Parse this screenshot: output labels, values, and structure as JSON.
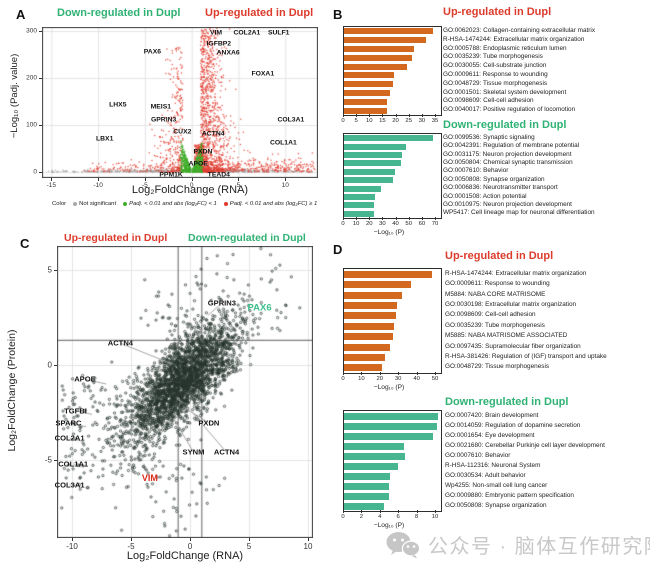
{
  "panel_a": {
    "letter": "A",
    "title_left": "Down-regulated in Dupl",
    "title_right": "Up-regulated  in Dupl",
    "xlabel": "Log₂FoldChange (RNA)",
    "ylabel": "−Log₁₀ (Padj. value)",
    "legend": {
      "label": "Color",
      "items": [
        {
          "text": "Not significant",
          "color": "#a8a8a8"
        },
        {
          "text": "Padj. < 0.01 and abs (log₂FC) < 1",
          "color": "#3fae2a"
        },
        {
          "text": "Padj. < 0.01 and abs (log₂FC) ≥ 1",
          "color": "#e23b2e"
        }
      ]
    }
  },
  "panel_b": {
    "letter": "B",
    "title_up": "Up-regulated  in Dupl",
    "title_down": "Down-regulated in Dupl"
  },
  "panel_c": {
    "letter": "C",
    "title_left": "Up-regulated  in Dupl",
    "title_right": "Down-regulated in Dupl",
    "xlabel": "Log₂FoldChange (RNA)",
    "ylabel": "Log₂FoldChange (Protein)"
  },
  "panel_d": {
    "letter": "D",
    "title_up": "Up-regulated  in Dupl",
    "title_down": "Down-regulated in Dupl"
  },
  "watermark": {
    "icon": "wechat-icon",
    "text": "公众号 · 脑体互作研究院"
  },
  "colors": {
    "red_text": "#dd3b2b",
    "green_text": "#2fb274",
    "orange_bar": "#d2691e",
    "green_bar": "#48b591",
    "gray_dot": "#a8a8a8",
    "green_dot": "#3fae2a",
    "red_dot": "#e23b2e",
    "scatter_dot": "#26342c",
    "grid": "#e4e4e4",
    "axis": "#3a3a3a",
    "refline": "#7d7d7d",
    "watermark": "#c8c8c8"
  },
  "chart_data": [
    {
      "id": "volcano_a",
      "type": "scatter",
      "subtype": "volcano",
      "title": "Volcano plot RNA: Dupl",
      "xlabel": "Log₂FoldChange (RNA)",
      "ylabel": "−Log₁₀ (Padj. value)",
      "x_ticks": [
        -15,
        -10,
        -5,
        0,
        5,
        10
      ],
      "y_ticks": [
        0,
        100,
        200,
        300
      ],
      "xlim": [
        -16,
        13.5
      ],
      "ylim": [
        -13,
        308
      ],
      "grid": true,
      "legend_position": "bottom",
      "cloud": {
        "seed": 11,
        "gray_n": 850,
        "green_n": 560,
        "red_pos_n": 1350,
        "red_neg_n": 430,
        "red_tail_n": 330
      },
      "gene_labels": [
        {
          "text": "VIM",
          "x": 2.6,
          "y": 296
        },
        {
          "text": "COL2A1",
          "x": 5.9,
          "y": 296
        },
        {
          "text": "SULF1",
          "x": 9.3,
          "y": 296
        },
        {
          "text": "IGFBP2",
          "x": 2.9,
          "y": 273
        },
        {
          "text": "ANXA6",
          "x": 3.9,
          "y": 253
        },
        {
          "text": "PAX6",
          "x": -4.2,
          "y": 255
        },
        {
          "text": "FOXA1",
          "x": 7.6,
          "y": 208
        },
        {
          "text": "LHX5",
          "x": -7.9,
          "y": 143
        },
        {
          "text": "MEIS1",
          "x": -3.3,
          "y": 139
        },
        {
          "text": "GPRIN3",
          "x": -3.0,
          "y": 110
        },
        {
          "text": "CUX2",
          "x": -1.0,
          "y": 86
        },
        {
          "text": "ACTN4",
          "x": 2.3,
          "y": 80
        },
        {
          "text": "COL3A1",
          "x": 10.6,
          "y": 110
        },
        {
          "text": "LBX1",
          "x": -9.3,
          "y": 70
        },
        {
          "text": "COL1A1",
          "x": 9.8,
          "y": 62
        },
        {
          "text": "PXDN",
          "x": 1.2,
          "y": 43
        },
        {
          "text": "APOE",
          "x": 0.7,
          "y": 18
        },
        {
          "text": "PPM1K",
          "x": -2.2,
          "y": -6
        },
        {
          "text": "TEAD4",
          "x": 2.9,
          "y": -6
        }
      ]
    },
    {
      "id": "go_up_b",
      "type": "bar",
      "orientation": "horizontal",
      "title": "Up-regulated  in Dupl",
      "bar_color": "#d2691e",
      "ticks": [
        0,
        5,
        10,
        15,
        20,
        25,
        30,
        35
      ],
      "xmax_tick": 35,
      "xlabel": "",
      "items": [
        {
          "term": "GO:0062023: Collagen-containing extracellular matrix",
          "value": 34
        },
        {
          "term": "R-HSA-1474244: Extracellular matrix organization",
          "value": 31
        },
        {
          "term": "GO:0005788: Endoplasmic reticulum lumen",
          "value": 26.5
        },
        {
          "term": "GO:0035239: Tube morphogenesis",
          "value": 26
        },
        {
          "term": "GO:0030055: Cell-substrate junction",
          "value": 24
        },
        {
          "term": "GO:0009611: Response to wounding",
          "value": 19
        },
        {
          "term": "GO:0048729: Tissue morphogenesis",
          "value": 18.8
        },
        {
          "term": "GO:0001501: Skeletal system development",
          "value": 17.6
        },
        {
          "term": "GO:0098609: Cell-cell adhesion",
          "value": 16.5
        },
        {
          "term": "GO:0040017: Positive regulation of locomotion",
          "value": 16.5
        }
      ]
    },
    {
      "id": "go_down_b",
      "type": "bar",
      "orientation": "horizontal",
      "title": "Down-regulated in Dupl",
      "bar_color": "#48b591",
      "ticks": [
        0,
        10,
        20,
        30,
        40,
        50,
        60,
        70
      ],
      "xmax_tick": 70,
      "xlabel": "−Log₁₀ (P)",
      "items": [
        {
          "term": "GO:0099536: Synaptic signaling",
          "value": 68
        },
        {
          "term": "GO:0042391: Regulation of membrane potential",
          "value": 47
        },
        {
          "term": "GO:0031175: Neuron projection development",
          "value": 44
        },
        {
          "term": "GO:0050804: Chemical synaptic transmission",
          "value": 43
        },
        {
          "term": "GO:0007610: Behavior",
          "value": 39
        },
        {
          "term": "GO:0050808: Synapse organization",
          "value": 37
        },
        {
          "term": "GO:0006836: Neurotransmitter transport",
          "value": 28
        },
        {
          "term": "GO:0001508: Action potential",
          "value": 23.5
        },
        {
          "term": "GO:0010975: Neuron projection development",
          "value": 23
        },
        {
          "term": "WP5417: Cell lineage map for neuronal differentiation",
          "value": 23
        }
      ]
    },
    {
      "id": "scatter_c",
      "type": "scatter",
      "subtype": "rna-protein-correlation",
      "title": "RNA vs Protein fold change",
      "xlabel": "Log₂FoldChange (RNA)",
      "ylabel": "Log₂FoldChange (Protein)",
      "x_ticks": [
        -10,
        -5,
        0,
        5,
        10
      ],
      "y_ticks": [
        -5,
        0,
        5
      ],
      "xlim": [
        -11.3,
        10.4
      ],
      "ylim": [
        -9.1,
        6.3
      ],
      "grid": true,
      "ref_lines": {
        "vertical": [
          -1,
          1
        ],
        "horizontal": [
          1.3
        ]
      },
      "cloud": {
        "seed": 7,
        "main_n": 2400,
        "wing_n": 260,
        "tr_n": 50,
        "bottom_n": 40,
        "topmid_n": 30
      },
      "gene_labels": [
        {
          "text": "GPRIN3",
          "x": 2.7,
          "y": 3.25,
          "cls": "c-black",
          "leader": [
            1.5,
            2.6
          ]
        },
        {
          "text": "PAX6",
          "x": 5.9,
          "y": 3.0,
          "cls": "c-green"
        },
        {
          "text": "ACTN4",
          "x": -5.9,
          "y": 1.15,
          "cls": "c-black",
          "leader": [
            -1.5,
            0.05
          ]
        },
        {
          "text": "APOE",
          "x": -8.9,
          "y": -0.75,
          "cls": "c-black",
          "leader": [
            -7.1,
            -1.0
          ]
        },
        {
          "text": "TGFBI",
          "x": -9.7,
          "y": -2.4,
          "cls": "c-black",
          "leader": [
            -8.3,
            -2.6
          ]
        },
        {
          "text": "SPARC",
          "x": -10.3,
          "y": -3.05,
          "cls": "c-black",
          "leader": [
            -8.8,
            -3.25
          ]
        },
        {
          "text": "COL2A1",
          "x": -10.2,
          "y": -3.85,
          "cls": "c-black",
          "leader": [
            -9.2,
            -4.0
          ]
        },
        {
          "text": "COL1A1",
          "x": -9.9,
          "y": -5.2,
          "cls": "c-black",
          "leader": [
            -9.0,
            -5.35
          ]
        },
        {
          "text": "COL3A1",
          "x": -10.2,
          "y": -6.3,
          "cls": "c-black",
          "leader": [
            -9.4,
            -6.35
          ]
        },
        {
          "text": "VIM",
          "x": -3.4,
          "y": -5.95,
          "cls": "c-red",
          "leader": [
            -3.9,
            -5.2
          ]
        },
        {
          "text": "SYNM",
          "x": 0.3,
          "y": -4.6,
          "cls": "c-black",
          "leader": [
            -1.4,
            -2.8
          ]
        },
        {
          "text": "PXDN",
          "x": 1.6,
          "y": -3.05,
          "cls": "c-black",
          "leader": [
            -0.6,
            -2.2
          ]
        },
        {
          "text": "ACTN4",
          "x": 3.1,
          "y": -4.6,
          "cls": "c-black",
          "leader": [
            0.2,
            -2.5
          ]
        }
      ]
    },
    {
      "id": "go_up_d",
      "type": "bar",
      "orientation": "horizontal",
      "title": "Up-regulated  in Dupl",
      "bar_color": "#d2691e",
      "ticks": [
        0,
        10,
        20,
        30,
        40,
        50
      ],
      "xmax_tick": 50,
      "xlabel": "−Log₁₀ (P)",
      "items": [
        {
          "term": "R-HSA-1474244: Extracellular matrix organization",
          "value": 48
        },
        {
          "term": "GO:0009611: Response to wounding",
          "value": 36.5
        },
        {
          "term": "M5884: NABA CORE MATRISOME",
          "value": 31.5
        },
        {
          "term": "GO:0030198: Extracellular matrix organization",
          "value": 29
        },
        {
          "term": "GO:0098609: Cell-cell adhesion",
          "value": 28.5
        },
        {
          "term": "GO:0035239: Tube morphogenesis",
          "value": 27
        },
        {
          "term": "M5885: NABA MATRISOME ASSOCIATED",
          "value": 26.5
        },
        {
          "term": "GO:0097435: Supramolecular fiber organization",
          "value": 25
        },
        {
          "term": "R-HSA-381426: Regulation of (IGF) transport and uptake",
          "value": 22.5
        },
        {
          "term": "GO:0048729: Tissue morphogenesis",
          "value": 20.5
        }
      ]
    },
    {
      "id": "go_down_d",
      "type": "bar",
      "orientation": "horizontal",
      "title": "Down-regulated in Dupl",
      "bar_color": "#48b591",
      "ticks": [
        0,
        2,
        4,
        6,
        8,
        10
      ],
      "xmax_tick": 10,
      "xlabel": "−Log₁₀ (P)",
      "items": [
        {
          "term": "GO:0007420: Brain development",
          "value": 10.2
        },
        {
          "term": "GO:0014059: Regulation of dopamine secretion",
          "value": 10.1
        },
        {
          "term": "GO:0001654: Eye development",
          "value": 9.7
        },
        {
          "term": "GO:0021680: Cerebellar Purkinje cell layer development",
          "value": 6.5
        },
        {
          "term": "GO:0007610: Behavior",
          "value": 6.6
        },
        {
          "term": "R-HSA-112316: Neuronal System",
          "value": 5.9
        },
        {
          "term": "GO:0030534: Adult behavior",
          "value": 5.0
        },
        {
          "term": "Wp4255: Non-small cell lung cancer",
          "value": 4.9
        },
        {
          "term": "GO:0009880: Embryonic pattern specification",
          "value": 4.9
        },
        {
          "term": "GO:0050808: Synapse organization",
          "value": 4.3
        }
      ]
    }
  ]
}
